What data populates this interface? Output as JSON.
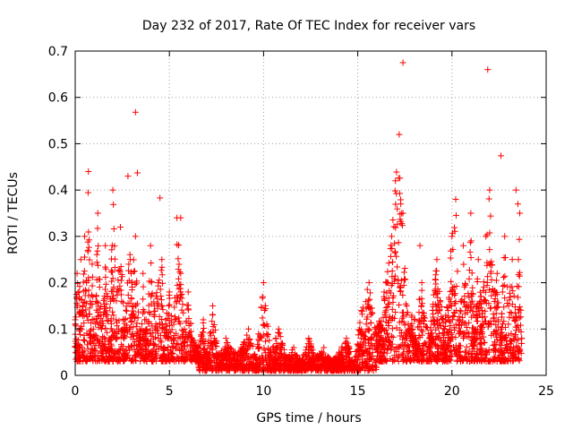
{
  "chart_data": {
    "type": "scatter",
    "title": "Day 232 of 2017, Rate Of TEC Index for receiver vars",
    "xlabel": "GPS time / hours",
    "ylabel": "ROTI / TECUs",
    "xlim": [
      0,
      25
    ],
    "ylim": [
      0,
      0.7
    ],
    "xticks": [
      0,
      5,
      10,
      15,
      20,
      25
    ],
    "yticks": [
      0,
      0.1,
      0.2,
      0.3,
      0.4,
      0.5,
      0.6,
      0.7
    ],
    "xtick_labels": [
      "0",
      "5",
      "10",
      "15",
      "20",
      "25"
    ],
    "ytick_labels": [
      "0",
      "0.1",
      "0.2",
      "0.3",
      "0.4",
      "0.5",
      "0.6",
      "0.7"
    ],
    "grid": true,
    "legend": "none",
    "marker": "+",
    "color": "#ff0000",
    "series": [
      {
        "x": [
          0.0,
          0.1,
          0.2,
          0.3,
          0.4,
          0.5,
          0.6,
          0.7,
          0.8,
          0.9,
          1.0,
          1.2,
          1.4,
          1.6,
          1.8,
          2.0,
          2.2,
          2.4,
          2.6,
          2.8,
          3.0,
          3.2,
          3.4,
          3.6,
          3.8,
          4.0,
          4.2,
          4.4,
          4.6,
          4.8,
          5.0,
          5.2,
          5.4,
          5.6,
          5.8,
          6.0,
          6.2,
          6.5,
          6.8,
          7.0,
          7.3,
          7.6,
          8.0,
          8.4,
          8.8,
          9.2,
          9.6,
          10.0,
          10.4,
          10.8,
          11.2,
          11.6,
          12.0,
          12.4,
          12.8,
          13.2,
          13.6,
          14.0,
          14.4,
          14.8,
          15.2,
          15.6,
          16.0,
          16.4,
          16.8,
          17.0,
          17.2,
          17.4,
          17.6,
          18.0,
          18.4,
          18.8,
          19.2,
          19.6,
          20.0,
          20.2,
          20.4,
          20.6,
          20.8,
          21.0,
          21.2,
          21.4,
          21.6,
          21.8,
          22.0,
          22.2,
          22.4,
          22.6,
          22.8,
          23.0,
          23.2,
          23.4,
          23.6,
          23.7
        ],
        "y": [
          0.12,
          0.22,
          0.18,
          0.25,
          0.15,
          0.3,
          0.2,
          0.44,
          0.16,
          0.24,
          0.12,
          0.35,
          0.1,
          0.28,
          0.08,
          0.4,
          0.18,
          0.32,
          0.1,
          0.43,
          0.2,
          0.3,
          0.08,
          0.22,
          0.1,
          0.28,
          0.15,
          0.2,
          0.25,
          0.12,
          0.18,
          0.08,
          0.34,
          0.22,
          0.1,
          0.18,
          0.08,
          0.06,
          0.12,
          0.05,
          0.15,
          0.04,
          0.08,
          0.05,
          0.06,
          0.1,
          0.04,
          0.2,
          0.05,
          0.1,
          0.04,
          0.06,
          0.03,
          0.08,
          0.04,
          0.06,
          0.03,
          0.05,
          0.08,
          0.03,
          0.14,
          0.2,
          0.1,
          0.18,
          0.3,
          0.42,
          0.52,
          0.35,
          0.15,
          0.12,
          0.2,
          0.08,
          0.25,
          0.1,
          0.3,
          0.38,
          0.12,
          0.28,
          0.15,
          0.35,
          0.1,
          0.25,
          0.14,
          0.3,
          0.4,
          0.18,
          0.22,
          0.1,
          0.3,
          0.15,
          0.25,
          0.12,
          0.35,
          0.08
        ]
      }
    ],
    "outliers": [
      {
        "x": 3.2,
        "y": 0.568
      },
      {
        "x": 17.4,
        "y": 0.675
      },
      {
        "x": 21.9,
        "y": 0.66
      },
      {
        "x": 22.6,
        "y": 0.474
      },
      {
        "x": 3.3,
        "y": 0.437
      },
      {
        "x": 4.5,
        "y": 0.383
      },
      {
        "x": 5.6,
        "y": 0.34
      },
      {
        "x": 18.3,
        "y": 0.28
      },
      {
        "x": 23.4,
        "y": 0.4
      },
      {
        "x": 23.5,
        "y": 0.37
      }
    ]
  }
}
